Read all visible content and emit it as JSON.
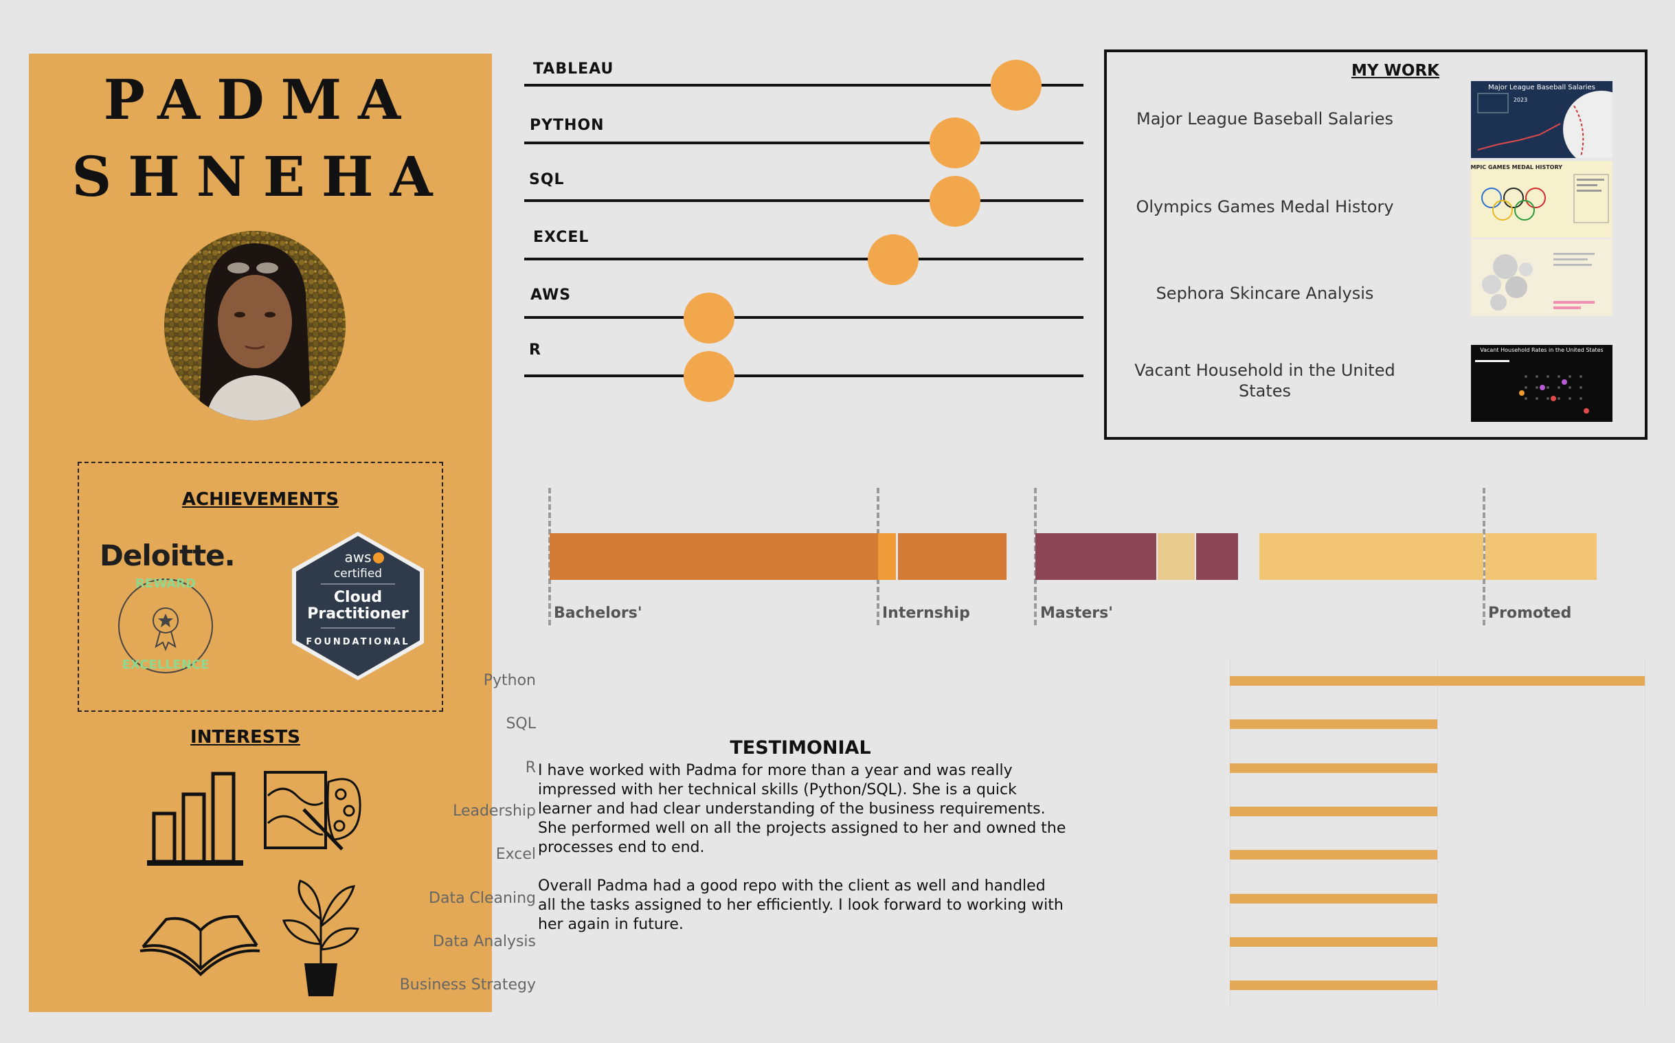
{
  "profile": {
    "first_name": "PADMA",
    "last_name": "SHNEHA",
    "achievements_heading": "ACHIEVEMENTS",
    "interests_heading": "INTERESTS",
    "deloitte_logo": "Deloitte.",
    "deloitte_award_top": "REWARD",
    "deloitte_award_bottom": "EXCELLENCE",
    "aws_badge": {
      "brand": "aws",
      "line1": "certified",
      "line2": "Cloud",
      "line3": "Practitioner",
      "line4": "FOUNDATIONAL"
    },
    "interest_icons": [
      "bar-chart-icon",
      "painting-icon",
      "book-icon",
      "plant-icon"
    ]
  },
  "skills": [
    {
      "label": "TABLEAU",
      "level": 0.88
    },
    {
      "label": "PYTHON",
      "level": 0.77
    },
    {
      "label": "SQL",
      "level": 0.77
    },
    {
      "label": "EXCEL",
      "level": 0.66
    },
    {
      "label": "AWS",
      "level": 0.33
    },
    {
      "label": "R",
      "level": 0.33
    }
  ],
  "my_work": {
    "heading": "MY WORK",
    "items": [
      {
        "title": "Major League Baseball Salaries",
        "thumb_title": "Major League Baseball Salaries",
        "thumb_year": "2023"
      },
      {
        "title": "Olympics Games Medal History",
        "thumb_title": "OLYMPIC GAMES MEDAL HISTORY"
      },
      {
        "title": "Sephora Skincare Analysis"
      },
      {
        "title": "Vacant Household in the United States",
        "thumb_title": "Vacant Household Rates in the United States"
      }
    ]
  },
  "timeline": {
    "labels": [
      "Bachelors'",
      "Internship",
      "Masters'",
      "Promoted"
    ],
    "colors": {
      "orange": "#d37a35",
      "bright_orange": "#ef9b3a",
      "maroon": "#8b4555",
      "tan": "#e8c98e",
      "light_gold": "#f2c574"
    }
  },
  "testimonial": {
    "heading": "TESTIMONIAL",
    "para1": "I have worked with Padma for more than a year and was really impressed with her technical skills (Python/SQL). She is a quick learner and had clear understanding of the business requirements. She performed well on all the projects assigned to her and owned the processes end to end.",
    "para2": "Overall Padma had a good repo with the client as well and handled all the tasks assigned to her efficiently. I look forward to working with her again in future."
  },
  "chart_data": {
    "type": "bar",
    "orientation": "horizontal",
    "categories": [
      "Python",
      "SQL",
      "R",
      "Leadership",
      "Excel",
      "Data Cleaning",
      "Data Analysis",
      "Business Strategy"
    ],
    "values": [
      2,
      1,
      1,
      1,
      1,
      1,
      1,
      1
    ],
    "xlim": [
      0,
      2
    ],
    "grid": true,
    "bar_color": "#e3a956"
  }
}
